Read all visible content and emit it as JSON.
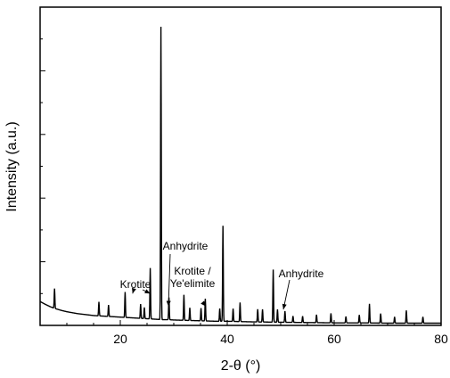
{
  "chart_data": {
    "type": "line",
    "xlabel": "2-θ (°)",
    "ylabel": "Intensity (a.u.)",
    "xlim": [
      5,
      80
    ],
    "ylim": [
      0,
      1000
    ],
    "x_ticks": [
      20,
      40,
      60,
      80
    ],
    "grid": false,
    "series": [
      {
        "x": [
          5,
          6,
          7,
          8,
          9,
          10,
          11,
          12,
          13,
          14,
          15,
          16,
          17,
          18,
          19,
          20,
          21,
          22,
          23,
          24,
          25,
          26,
          27,
          28,
          29,
          30,
          32,
          34,
          36,
          38,
          40,
          45,
          50,
          55,
          60,
          65,
          70,
          75,
          80
        ],
        "y": [
          75,
          66,
          58,
          52,
          47,
          43,
          40,
          37,
          35,
          33,
          31,
          30,
          29,
          28,
          27,
          26,
          25,
          24,
          23,
          22,
          21,
          20,
          19,
          18,
          18,
          17,
          16,
          15,
          14,
          13,
          13,
          11,
          10,
          9,
          8,
          8,
          7,
          7,
          7
        ]
      }
    ],
    "peaks": [
      {
        "x": 7.7,
        "y": 62
      },
      {
        "x": 16.0,
        "y": 44
      },
      {
        "x": 17.8,
        "y": 36
      },
      {
        "x": 20.9,
        "y": 80
      },
      {
        "x": 23.8,
        "y": 45
      },
      {
        "x": 24.5,
        "y": 35
      },
      {
        "x": 25.6,
        "y": 160
      },
      {
        "x": 27.6,
        "y": 920
      },
      {
        "x": 29.1,
        "y": 70
      },
      {
        "x": 31.9,
        "y": 80
      },
      {
        "x": 33.0,
        "y": 40
      },
      {
        "x": 35.1,
        "y": 40
      },
      {
        "x": 35.9,
        "y": 70
      },
      {
        "x": 38.6,
        "y": 40
      },
      {
        "x": 39.2,
        "y": 300
      },
      {
        "x": 41.1,
        "y": 40
      },
      {
        "x": 42.4,
        "y": 60
      },
      {
        "x": 45.7,
        "y": 40
      },
      {
        "x": 46.6,
        "y": 40
      },
      {
        "x": 48.6,
        "y": 165
      },
      {
        "x": 49.4,
        "y": 40
      },
      {
        "x": 50.8,
        "y": 35
      },
      {
        "x": 52.3,
        "y": 20
      },
      {
        "x": 54.1,
        "y": 20
      },
      {
        "x": 56.7,
        "y": 25
      },
      {
        "x": 59.4,
        "y": 30
      },
      {
        "x": 62.2,
        "y": 20
      },
      {
        "x": 64.7,
        "y": 25
      },
      {
        "x": 66.6,
        "y": 60
      },
      {
        "x": 68.7,
        "y": 30
      },
      {
        "x": 71.3,
        "y": 20
      },
      {
        "x": 73.5,
        "y": 40
      },
      {
        "x": 76.6,
        "y": 20
      }
    ],
    "annotations": [
      {
        "lines": [
          "Krotite"
        ],
        "arrows_to": [
          [
            22.3,
            100
          ],
          [
            25.6,
            100
          ]
        ]
      },
      {
        "lines": [
          "Anhydrite"
        ],
        "arrows_to": [
          [
            29.0,
            60
          ]
        ]
      },
      {
        "lines": [
          "Krotite /",
          "Ye'elimite"
        ],
        "arrows_to": [
          [
            36.0,
            60
          ]
        ]
      },
      {
        "lines": [
          "Anhydrite"
        ],
        "arrows_to": [
          [
            50.5,
            50
          ]
        ]
      }
    ]
  }
}
